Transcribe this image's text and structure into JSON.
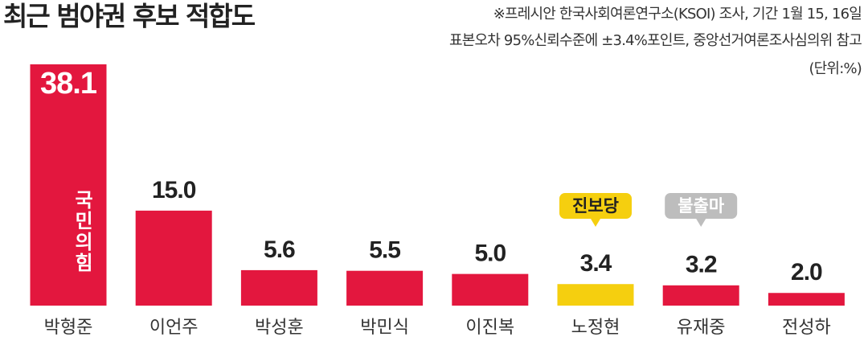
{
  "chart_data": {
    "type": "bar",
    "title": "최근 범야권 후보 적합도",
    "notes": [
      "※프레시안  한국사회여론연구소(KSOI) 조사, 기간 1월 15, 16일",
      "표본오차 95%신뢰수준에 ±3.4%포인트, 중앙선거여론조사심의위 참고",
      "(단위:%)"
    ],
    "categories": [
      "박형준",
      "이언주",
      "박성훈",
      "박민식",
      "이진복",
      "노정현",
      "유재중",
      "전성하"
    ],
    "values": [
      38.1,
      15.0,
      5.6,
      5.5,
      5.0,
      3.4,
      3.2,
      2.0
    ],
    "value_labels": [
      "38.1",
      "15.0",
      "5.6",
      "5.5",
      "5.0",
      "3.4",
      "3.2",
      "2.0"
    ],
    "colors": [
      "#e3173e",
      "#e3173e",
      "#e3173e",
      "#e3173e",
      "#e3173e",
      "#f5cf0f",
      "#e3173e",
      "#e3173e"
    ],
    "party_label": "국민의힘",
    "callouts": [
      {
        "text": "진보당",
        "color": "#f5cf0f"
      },
      {
        "text": "불출마",
        "color": "#bdbdbd"
      }
    ]
  }
}
